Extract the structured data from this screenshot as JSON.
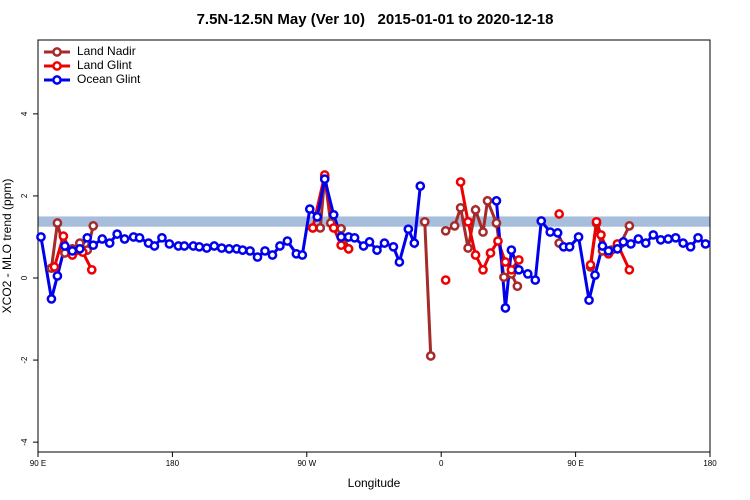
{
  "chart_data": {
    "type": "line",
    "title": "7.5N-12.5N May (Ver 10)   2015-01-01 to 2020-12-18",
    "x_label": "Longitude",
    "y_label": "XCO2 - MLO trend (ppm)",
    "xlim": [
      90,
      540
    ],
    "ylim": [
      -4.24,
      5.8
    ],
    "xticks": [
      {
        "value": 90,
        "label": "90 E"
      },
      {
        "value": 180,
        "label": "180"
      },
      {
        "value": 270,
        "label": "90 W"
      },
      {
        "value": 360,
        "label": "0"
      },
      {
        "value": 450,
        "label": "90 E"
      },
      {
        "value": 540,
        "label": "180"
      }
    ],
    "yticks": [
      -4,
      -2,
      0,
      2,
      4
    ],
    "reference_band": [
      1.25,
      1.5
    ],
    "band_color": "#a7bddc",
    "legend": "top-left",
    "series": [
      {
        "name": "Land Nadir",
        "color": "#a52a2a",
        "x": [
          99,
          103,
          108,
          113,
          118,
          123,
          127,
          200,
          274,
          279,
          282,
          286,
          293,
          298,
          320,
          349,
          353,
          356,
          363,
          369,
          373,
          378,
          383,
          388,
          391,
          397,
          402,
          407,
          411,
          420,
          439,
          450,
          460,
          464,
          468,
          474,
          480,
          486
        ],
        "values": [
          0.24,
          1.34,
          0.61,
          0.71,
          0.85,
          0.68,
          1.27,
          null,
          1.22,
          1.22,
          2.46,
          1.34,
          1.2,
          0.71,
          null,
          1.37,
          -1.9,
          null,
          1.15,
          1.27,
          1.71,
          0.73,
          1.66,
          1.12,
          1.88,
          1.34,
          0.02,
          0.1,
          -0.2,
          null,
          0.85,
          null,
          0.27,
          1.34,
          0.66,
          0.68,
          0.83,
          1.27
        ]
      },
      {
        "name": "Land Glint",
        "color": "#ee0000",
        "x": [
          101,
          107,
          113,
          120,
          126,
          200,
          274,
          282,
          288,
          293,
          298,
          330,
          363,
          366,
          373,
          378,
          383,
          388,
          393,
          398,
          403,
          407,
          412,
          420,
          439,
          450,
          460,
          464,
          467,
          472,
          478,
          486
        ],
        "values": [
          0.27,
          1.02,
          0.56,
          0.63,
          0.2,
          null,
          1.22,
          2.51,
          1.22,
          0.8,
          0.71,
          null,
          -0.05,
          null,
          2.34,
          1.37,
          0.56,
          0.2,
          0.61,
          0.9,
          0.39,
          0.2,
          0.44,
          null,
          1.56,
          null,
          0.32,
          1.37,
          1.05,
          0.59,
          0.83,
          0.2
        ]
      },
      {
        "name": "Ocean Glint",
        "color": "#0000ee",
        "x": [
          92,
          99,
          103,
          108,
          113,
          118,
          123,
          127,
          133,
          138,
          143,
          148,
          154,
          158,
          164,
          168,
          173,
          178,
          184,
          188,
          194,
          198,
          203,
          208,
          213,
          218,
          223,
          227,
          232,
          237,
          242,
          247,
          252,
          257,
          263,
          267,
          272,
          277,
          282,
          288,
          293,
          298,
          302,
          308,
          312,
          317,
          322,
          328,
          332,
          338,
          342,
          346,
          380,
          397,
          403,
          407,
          412,
          418,
          423,
          427,
          433,
          438,
          442,
          446,
          452,
          459,
          463,
          468,
          472,
          478,
          482,
          487,
          492,
          497,
          502,
          507,
          512,
          517,
          522,
          527,
          532,
          537
        ],
        "values": [
          1.0,
          -0.51,
          0.05,
          0.78,
          0.66,
          0.71,
          0.98,
          0.8,
          0.95,
          0.85,
          1.07,
          0.95,
          1.0,
          0.98,
          0.85,
          0.78,
          0.98,
          0.83,
          0.78,
          0.78,
          0.78,
          0.76,
          0.73,
          0.78,
          0.73,
          0.71,
          0.71,
          0.68,
          0.66,
          0.51,
          0.66,
          0.56,
          0.78,
          0.9,
          0.59,
          0.56,
          1.68,
          1.49,
          2.41,
          1.54,
          1.0,
          1.0,
          0.98,
          0.78,
          0.88,
          0.68,
          0.85,
          0.76,
          0.39,
          1.19,
          0.85,
          2.24,
          null,
          1.88,
          -0.73,
          0.68,
          0.2,
          0.1,
          -0.05,
          1.39,
          1.12,
          1.1,
          0.76,
          0.76,
          1.0,
          -0.54,
          0.07,
          0.78,
          0.66,
          0.71,
          0.88,
          0.83,
          0.95,
          0.85,
          1.05,
          0.93,
          0.95,
          0.98,
          0.85,
          0.76,
          0.98,
          0.83
        ]
      }
    ]
  }
}
